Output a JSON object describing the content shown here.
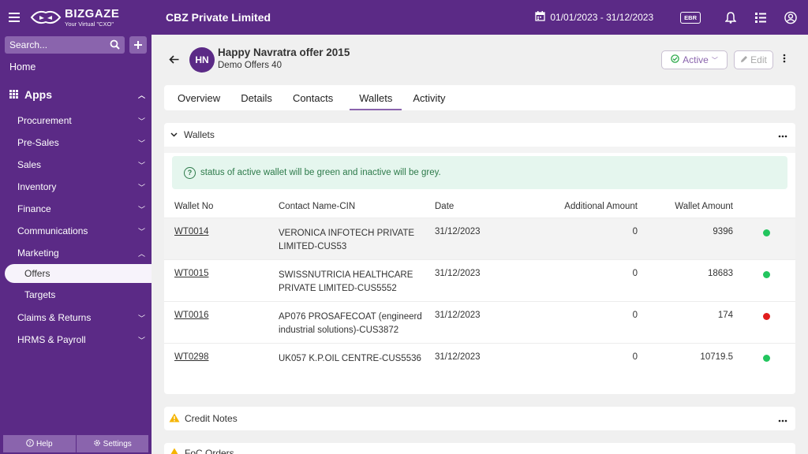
{
  "app": {
    "logo_name": "BIZGAZE",
    "logo_tagline": "Your Virtual \"CXO\"",
    "company": "CBZ Private Limited",
    "date_range": "01/01/2023 - 31/12/2023",
    "ebr_label": "EBR"
  },
  "sidebar": {
    "search_placeholder": "Search...",
    "home": "Home",
    "apps": "Apps",
    "items": [
      "Procurement",
      "Pre-Sales",
      "Sales",
      "Inventory",
      "Finance",
      "Communications",
      "Marketing"
    ],
    "marketing_sub": [
      "Offers",
      "Targets"
    ],
    "items_after": [
      "Claims & Returns",
      "HRMS & Payroll"
    ],
    "help": "Help",
    "settings": "Settings"
  },
  "record": {
    "initials": "HN",
    "title": "Happy Navratra offer 2015",
    "subtitle": "Demo Offers 40",
    "status": "Active",
    "edit": "Edit"
  },
  "tabs": [
    "Overview",
    "Details",
    "Contacts",
    "Wallets",
    "Activity"
  ],
  "active_tab": "Wallets",
  "wallets": {
    "section_title": "Wallets",
    "info": "status of active wallet will be green and inactive will be grey.",
    "columns": [
      "Wallet No",
      "Contact Name-CIN",
      "Date",
      "Additional Amount",
      "Wallet Amount"
    ],
    "rows": [
      {
        "no": "WT0014",
        "contact": "VERONICA INFOTECH PRIVATE LIMITED-CUS53",
        "date": "31/12/2023",
        "additional": "0",
        "amount": "9396",
        "status_color": "#22c55e"
      },
      {
        "no": "WT0015",
        "contact": "SWISSNUTRICIA HEALTHCARE PRIVATE LIMITED-CUS5552",
        "date": "31/12/2023",
        "additional": "0",
        "amount": "18683",
        "status_color": "#22c55e"
      },
      {
        "no": "WT0016",
        "contact": "AP076 PROSAFECOAT (engineerd industrial solutions)-CUS3872",
        "date": "31/12/2023",
        "additional": "0",
        "amount": "174",
        "status_color": "#e11d1d"
      },
      {
        "no": "WT0298",
        "contact": "UK057 K.P.OIL CENTRE-CUS5536",
        "date": "31/12/2023",
        "additional": "0",
        "amount": "10719.5",
        "status_color": "#22c55e"
      }
    ]
  },
  "sections": {
    "credit_notes": "Credit Notes",
    "foc_orders": "FoC Orders"
  },
  "colors": {
    "brand": "#5b2a86",
    "accent": "#8a64ad",
    "info_bg": "#e5f6ee"
  }
}
